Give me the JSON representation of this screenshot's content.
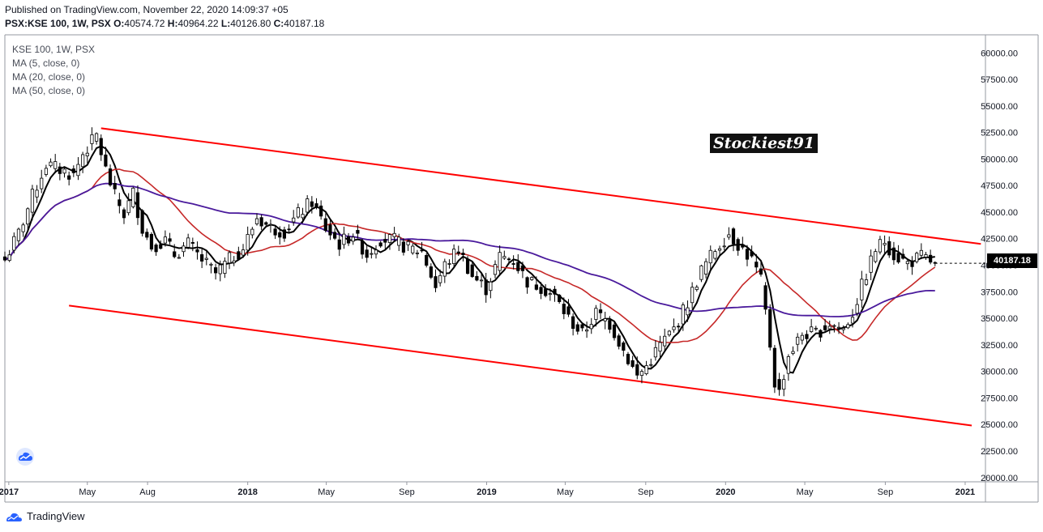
{
  "header": {
    "published": "Published on TradingView.com, November 22, 2020 14:09:37 +05",
    "symbol": "PSX:KSE 100, 1W, PSX",
    "ohlc": [
      {
        "k": "O:",
        "v": "40574.72"
      },
      {
        "k": "H:",
        "v": "40964.22"
      },
      {
        "k": "L:",
        "v": "40126.80"
      },
      {
        "k": "C:",
        "v": "40187.18"
      }
    ]
  },
  "legend": {
    "title": "KSE 100, 1W, PSX",
    "ma1": "MA (5, close, 0)",
    "ma2": "MA (20, close, 0)",
    "ma3": "MA (50, close, 0)"
  },
  "watermark": "Stockiest91",
  "last_price_label": "40187.18",
  "footer": {
    "brand": "TradingView"
  },
  "colors": {
    "up": "#ffffff",
    "down": "#000000",
    "wick": "#000000",
    "ma5": "#000000",
    "ma20": "#c62828",
    "ma50": "#4a1a9c",
    "channel": "#ff0000",
    "axis_text": "#131722",
    "axis_line": "#9598a1"
  },
  "chart_data": {
    "type": "candlestick",
    "interval": "1W",
    "ylim": [
      19600,
      61700
    ],
    "xlim": [
      "2016-12-26",
      "2021-02-01"
    ],
    "y_ticks": [
      "60000.00",
      "57500.00",
      "55000.00",
      "52500.00",
      "50000.00",
      "47500.00",
      "45000.00",
      "42500.00",
      "40000.00",
      "37500.00",
      "35000.00",
      "32500.00",
      "30000.00",
      "27500.00",
      "25000.00",
      "22500.00",
      "20000.00"
    ],
    "x_ticks": [
      {
        "date": "2017-01-01",
        "label": "2017",
        "bold": true
      },
      {
        "date": "2017-05-01",
        "label": "May",
        "bold": false
      },
      {
        "date": "2017-08-01",
        "label": "Aug",
        "bold": false
      },
      {
        "date": "2018-01-01",
        "label": "2018",
        "bold": true
      },
      {
        "date": "2018-05-01",
        "label": "May",
        "bold": false
      },
      {
        "date": "2018-09-01",
        "label": "Sep",
        "bold": false
      },
      {
        "date": "2019-01-01",
        "label": "2019",
        "bold": true
      },
      {
        "date": "2019-05-01",
        "label": "May",
        "bold": false
      },
      {
        "date": "2019-09-01",
        "label": "Sep",
        "bold": false
      },
      {
        "date": "2020-01-01",
        "label": "2020",
        "bold": true
      },
      {
        "date": "2020-05-01",
        "label": "May",
        "bold": false
      },
      {
        "date": "2020-09-01",
        "label": "Sep",
        "bold": false
      },
      {
        "date": "2021-01-01",
        "label": "2021",
        "bold": true
      }
    ],
    "close_anchors": [
      [
        "2016-12-26",
        40500
      ],
      [
        "2017-01-16",
        43000
      ],
      [
        "2017-02-06",
        46500
      ],
      [
        "2017-02-27",
        49500
      ],
      [
        "2017-03-20",
        49000
      ],
      [
        "2017-04-10",
        48500
      ],
      [
        "2017-04-24",
        50500
      ],
      [
        "2017-05-15",
        52200
      ],
      [
        "2017-05-29",
        49000
      ],
      [
        "2017-06-12",
        46500
      ],
      [
        "2017-06-26",
        44800
      ],
      [
        "2017-07-10",
        46800
      ],
      [
        "2017-07-24",
        43500
      ],
      [
        "2017-08-07",
        41800
      ],
      [
        "2017-08-28",
        42300
      ],
      [
        "2017-09-11",
        41000
      ],
      [
        "2017-10-02",
        42000
      ],
      [
        "2017-10-23",
        40500
      ],
      [
        "2017-11-13",
        39200
      ],
      [
        "2017-12-04",
        40500
      ],
      [
        "2017-12-25",
        41600
      ],
      [
        "2018-01-15",
        44500
      ],
      [
        "2018-02-05",
        43500
      ],
      [
        "2018-02-26",
        43200
      ],
      [
        "2018-03-19",
        44800
      ],
      [
        "2018-04-09",
        46000
      ],
      [
        "2018-04-30",
        43500
      ],
      [
        "2018-05-21",
        42000
      ],
      [
        "2018-06-11",
        43000
      ],
      [
        "2018-07-02",
        41000
      ],
      [
        "2018-07-23",
        42500
      ],
      [
        "2018-08-13",
        42300
      ],
      [
        "2018-09-03",
        41600
      ],
      [
        "2018-09-24",
        41300
      ],
      [
        "2018-10-15",
        38000
      ],
      [
        "2018-10-29",
        40000
      ],
      [
        "2018-11-19",
        41500
      ],
      [
        "2018-12-10",
        39000
      ],
      [
        "2018-12-31",
        37800
      ],
      [
        "2019-01-21",
        40800
      ],
      [
        "2019-02-11",
        40500
      ],
      [
        "2019-03-04",
        38500
      ],
      [
        "2019-03-25",
        38000
      ],
      [
        "2019-04-15",
        37000
      ],
      [
        "2019-05-06",
        35000
      ],
      [
        "2019-05-27",
        33500
      ],
      [
        "2019-06-17",
        35500
      ],
      [
        "2019-07-08",
        34500
      ],
      [
        "2019-07-29",
        32000
      ],
      [
        "2019-08-19",
        29500
      ],
      [
        "2019-09-02",
        30500
      ],
      [
        "2019-09-23",
        32500
      ],
      [
        "2019-10-14",
        34000
      ],
      [
        "2019-11-04",
        36500
      ],
      [
        "2019-11-25",
        39500
      ],
      [
        "2019-12-16",
        41500
      ],
      [
        "2020-01-06",
        43000
      ],
      [
        "2020-01-20",
        42000
      ],
      [
        "2020-02-10",
        40500
      ],
      [
        "2020-02-24",
        38500
      ],
      [
        "2020-03-09",
        32500
      ],
      [
        "2020-03-16",
        29000
      ],
      [
        "2020-03-23",
        28000
      ],
      [
        "2020-04-06",
        31500
      ],
      [
        "2020-04-27",
        33500
      ],
      [
        "2020-05-18",
        33600
      ],
      [
        "2020-06-08",
        34500
      ],
      [
        "2020-06-29",
        34000
      ],
      [
        "2020-07-13",
        35500
      ],
      [
        "2020-07-27",
        38000
      ],
      [
        "2020-08-17",
        41500
      ],
      [
        "2020-08-31",
        42300
      ],
      [
        "2020-09-14",
        41000
      ],
      [
        "2020-10-05",
        40200
      ],
      [
        "2020-10-26",
        40800
      ],
      [
        "2020-11-16",
        40187
      ]
    ],
    "series": [
      {
        "name": "MA (5, close, 0)",
        "period": 5
      },
      {
        "name": "MA (20, close, 0)",
        "period": 20
      },
      {
        "name": "MA (50, close, 0)",
        "period": 50
      }
    ],
    "channel": {
      "upper": [
        [
          "2017-05-22",
          52900
        ],
        [
          "2021-01-25",
          42000
        ]
      ],
      "lower": [
        [
          "2017-04-03",
          36200
        ],
        [
          "2021-01-11",
          24900
        ]
      ]
    },
    "last_close": 40187.18
  }
}
